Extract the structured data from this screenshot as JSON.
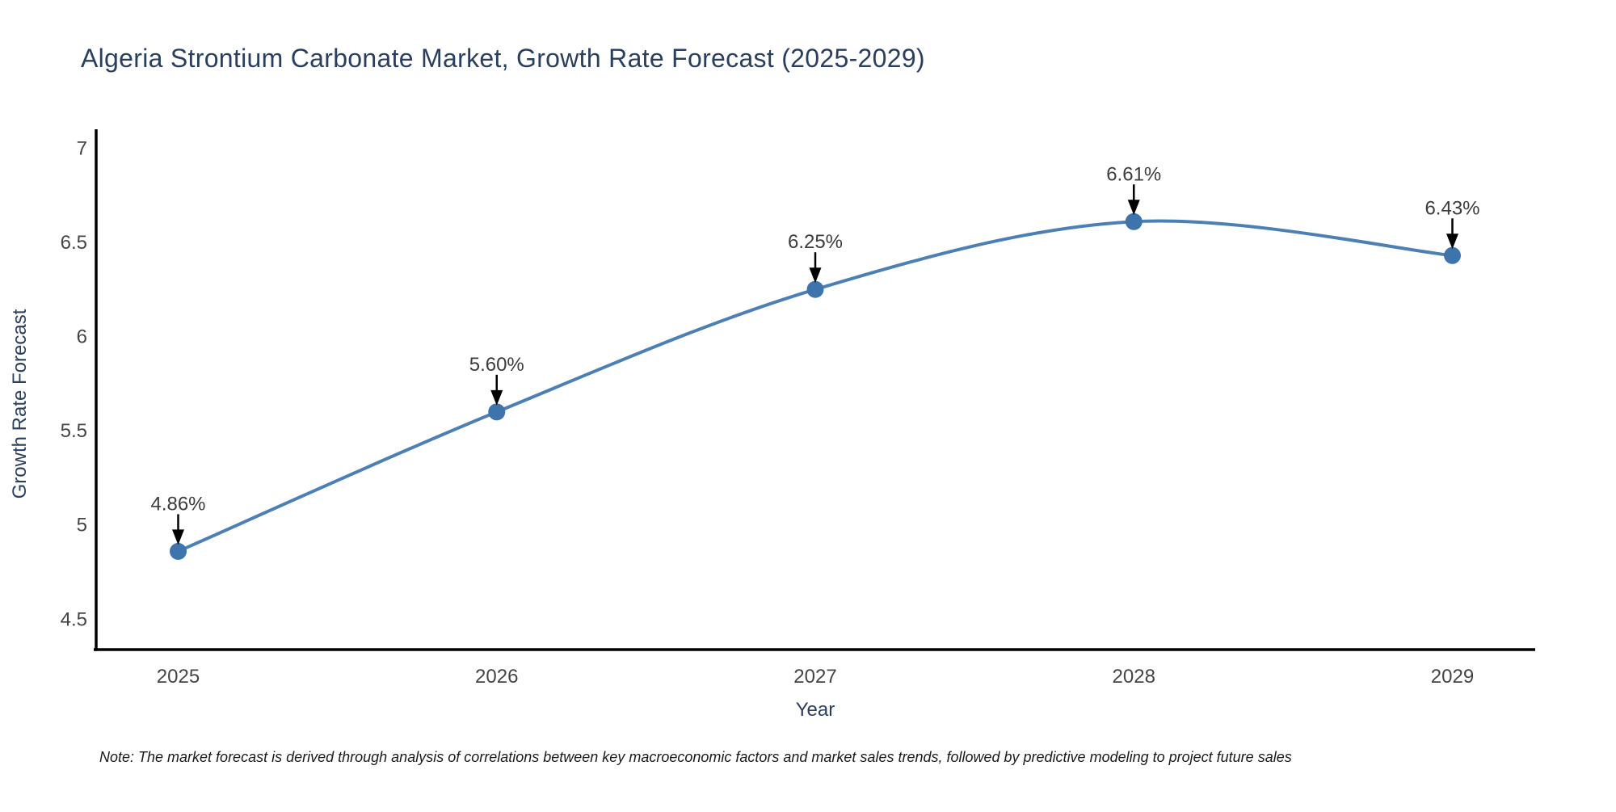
{
  "chart_data": {
    "type": "line",
    "title": "Algeria Strontium Carbonate Market, Growth Rate Forecast (2025-2029)",
    "x": [
      2025,
      2026,
      2027,
      2028,
      2029
    ],
    "series": [
      {
        "name": "Growth Rate Forecast",
        "values": [
          4.86,
          5.6,
          6.25,
          6.61,
          6.43
        ]
      }
    ],
    "point_labels": [
      "4.86%",
      "5.60%",
      "6.25%",
      "6.61%",
      "6.43%"
    ],
    "xlabel": "Year",
    "ylabel": "Growth Rate Forecast",
    "x_ticks": [
      "2025",
      "2026",
      "2027",
      "2028",
      "2029"
    ],
    "x_tick_values": [
      2025,
      2026,
      2027,
      2028,
      2029
    ],
    "y_ticks": [
      "7",
      "6.5",
      "6",
      "5.5",
      "5",
      "4.5"
    ],
    "y_tick_values": [
      7,
      6.5,
      6,
      5.5,
      5,
      4.5
    ],
    "xlim": [
      2024.74,
      2029.26
    ],
    "ylim": [
      4.33,
      7.1
    ],
    "grid": false,
    "legend": "none",
    "line_shape": "spline",
    "annotations": "black arrows pointing down to each data point with percent labels above",
    "colors": {
      "line": "#4C80B4",
      "marker": "#3D74AC",
      "axis_line": "#000000",
      "tick_label": "#454545",
      "axis_title": "#2A3F5F",
      "chart_title": "#2A3F5F",
      "data_label": "#3C3C3C",
      "arrow": "#000000",
      "note_text": "#1A1A1A"
    }
  },
  "footer": {
    "note": "Note: The market forecast is derived through analysis of correlations between key macroeconomic factors and market sales trends, followed by predictive modeling to project future sales"
  }
}
